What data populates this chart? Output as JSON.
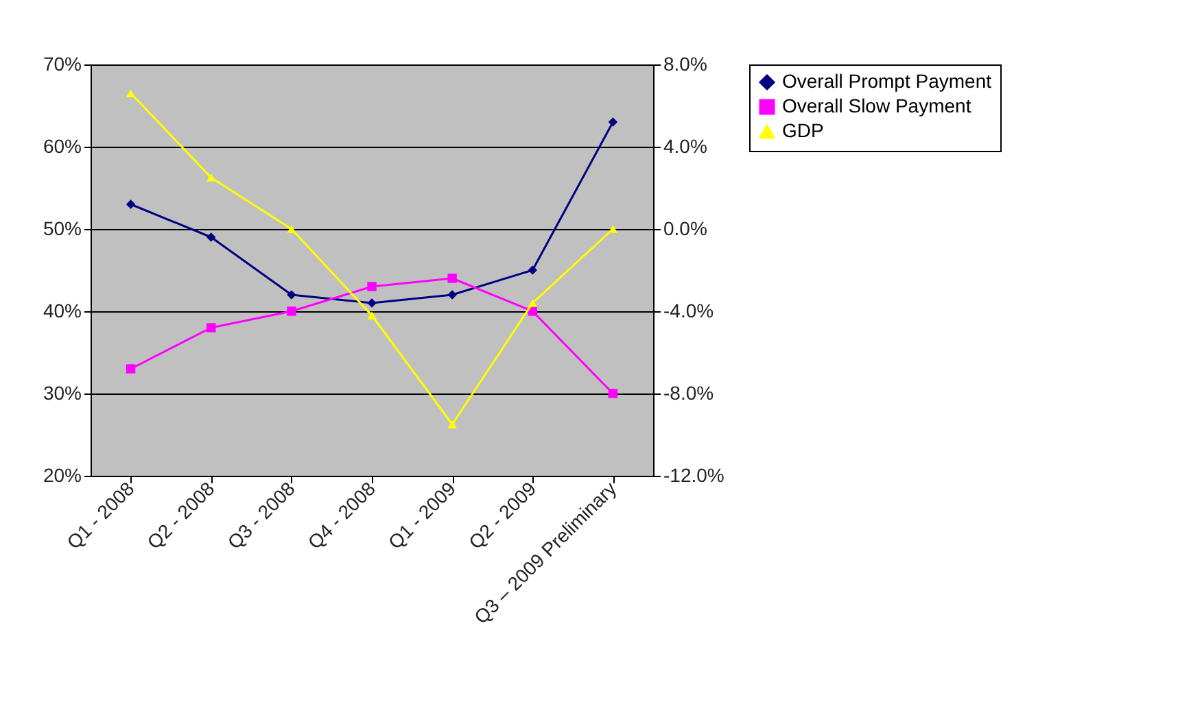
{
  "chart_data": {
    "type": "line",
    "categories": [
      "Q1 - 2008",
      "Q2 - 2008",
      "Q3 - 2008",
      "Q4 - 2008",
      "Q1 - 2009",
      "Q2 - 2009",
      "Q3 – 2009 Preliminary"
    ],
    "series": [
      {
        "name": "Overall Prompt Payment",
        "color": "#000080",
        "marker": "diamond",
        "values": [
          53,
          49,
          42,
          41,
          42,
          45,
          63
        ]
      },
      {
        "name": "Overall Slow Payment",
        "color": "#ff00ff",
        "marker": "square",
        "values": [
          33,
          38,
          40,
          43,
          44,
          40,
          30
        ]
      },
      {
        "name": "GDP",
        "color": "#ffff00",
        "marker": "triangle",
        "axis": "y2",
        "values": [
          6.6,
          2.5,
          0.0,
          -4.2,
          -9.5,
          -3.6,
          0.0
        ]
      }
    ],
    "ylim": [
      20,
      70
    ],
    "yticks": [
      {
        "value": 20,
        "label": "20%"
      },
      {
        "value": 30,
        "label": "30%"
      },
      {
        "value": 40,
        "label": "40%"
      },
      {
        "value": 50,
        "label": "50%"
      },
      {
        "value": 60,
        "label": "60%"
      },
      {
        "value": 70,
        "label": "70%"
      }
    ],
    "y2lim": [
      -12,
      8
    ],
    "y2ticks": [
      {
        "value": -12,
        "label": "-12.0%"
      },
      {
        "value": -8,
        "label": "-8.0%"
      },
      {
        "value": -4,
        "label": "-4.0%"
      },
      {
        "value": 0,
        "label": "0.0%"
      },
      {
        "value": 4,
        "label": "4.0%"
      },
      {
        "value": 8,
        "label": "8.0%"
      }
    ],
    "grid": "y",
    "legend": "right",
    "line_style": "solid"
  }
}
